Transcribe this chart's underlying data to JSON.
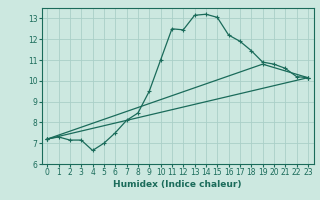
{
  "xlabel": "Humidex (Indice chaleur)",
  "xlim": [
    -0.5,
    23.5
  ],
  "ylim": [
    6,
    13.5
  ],
  "xticks": [
    0,
    1,
    2,
    3,
    4,
    5,
    6,
    7,
    8,
    9,
    10,
    11,
    12,
    13,
    14,
    15,
    16,
    17,
    18,
    19,
    20,
    21,
    22,
    23
  ],
  "yticks": [
    6,
    7,
    8,
    9,
    10,
    11,
    12,
    13
  ],
  "bg_color": "#cce8e0",
  "grid_color": "#aacfc8",
  "line_color": "#1a6b5a",
  "line1_x": [
    0,
    1,
    2,
    3,
    4,
    5,
    6,
    7,
    8,
    9,
    10,
    11,
    12,
    13,
    14,
    15,
    16,
    17,
    18,
    19,
    20,
    21,
    22,
    23
  ],
  "line1_y": [
    7.2,
    7.3,
    7.15,
    7.15,
    6.65,
    7.0,
    7.5,
    8.1,
    8.45,
    9.5,
    11.0,
    12.5,
    12.45,
    13.15,
    13.2,
    13.05,
    12.2,
    11.9,
    11.45,
    10.9,
    10.8,
    10.6,
    10.2,
    10.15
  ],
  "line2_x": [
    0,
    19,
    23
  ],
  "line2_y": [
    7.2,
    10.8,
    10.15
  ],
  "line3_x": [
    0,
    23
  ],
  "line3_y": [
    7.2,
    10.15
  ]
}
